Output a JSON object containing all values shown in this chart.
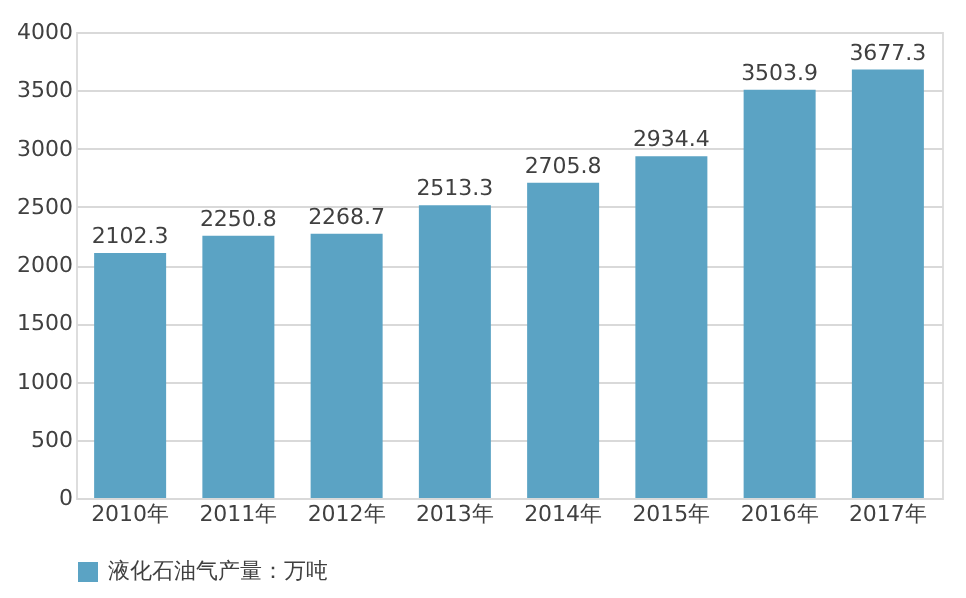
{
  "chart_data": {
    "type": "bar",
    "categories": [
      "2010年",
      "2011年",
      "2012年",
      "2013年",
      "2014年",
      "2015年",
      "2016年",
      "2017年"
    ],
    "series": [
      {
        "name": "液化石油气产量：万吨",
        "color": "#5ba3c4",
        "values": [
          2102.3,
          2250.8,
          2268.7,
          2513.3,
          2705.8,
          2934.4,
          3503.9,
          3677.3
        ]
      }
    ],
    "ylim": [
      0,
      4000
    ],
    "yticks": [
      0,
      500,
      1000,
      1500,
      2000,
      2500,
      3000,
      3500,
      4000
    ],
    "grid": "y",
    "legend": "bottom",
    "data_labels": true
  }
}
